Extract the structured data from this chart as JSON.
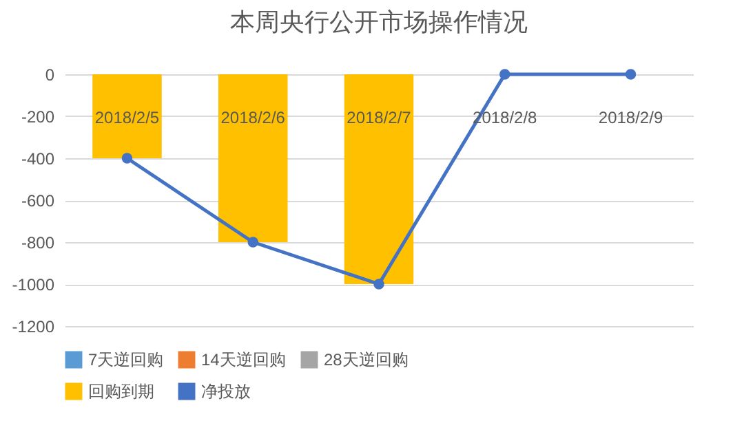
{
  "chart_data": {
    "type": "bar",
    "title": "本周央行公开市场操作情况",
    "stacked": true,
    "categories": [
      "2018/2/5",
      "2018/2/6",
      "2018/2/7",
      "2018/2/8",
      "2018/2/9"
    ],
    "series": [
      {
        "name": "7天逆回购",
        "color": "#5b9bd5",
        "values": [
          0,
          0,
          0,
          0,
          0
        ]
      },
      {
        "name": "14天逆回购",
        "color": "#ed7d31",
        "values": [
          0,
          0,
          0,
          0,
          0
        ]
      },
      {
        "name": "28天逆回购",
        "color": "#a5a5a5",
        "values": [
          0,
          0,
          0,
          0,
          0
        ]
      },
      {
        "name": "回购到期",
        "color": "#ffc000",
        "values": [
          -400,
          -800,
          -1000,
          0,
          0
        ]
      },
      {
        "name": "净投放",
        "type": "line",
        "color": "#4472c4",
        "values": [
          -400,
          -800,
          -1000,
          0,
          0
        ]
      }
    ],
    "ylim": [
      -1200,
      0
    ],
    "yticks": [
      -1200,
      -1000,
      -800,
      -600,
      -400,
      -200,
      0
    ],
    "grid": "y",
    "legend": "bottom",
    "marker": "circle"
  }
}
